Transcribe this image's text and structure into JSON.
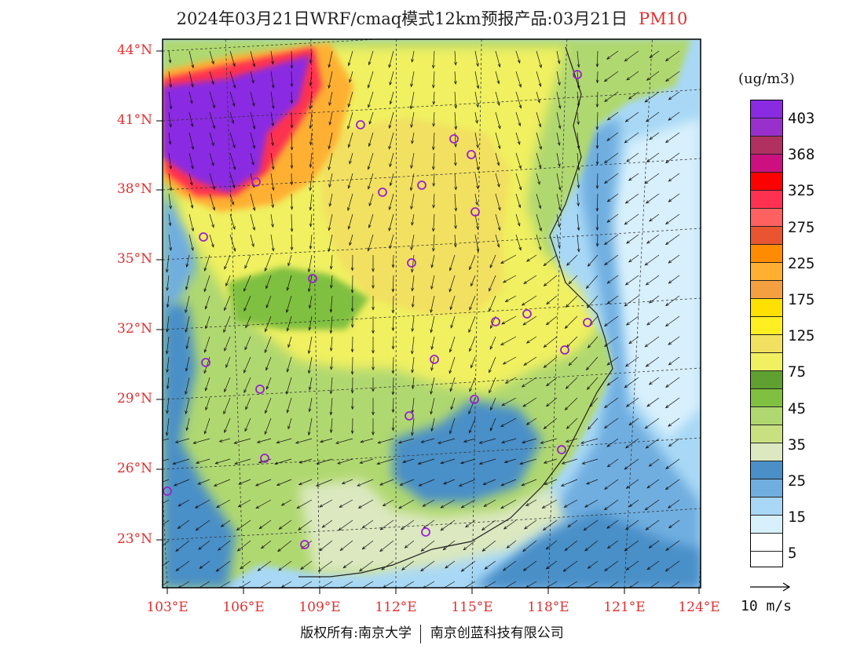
{
  "title": "2024年03月21日WRF/cmaq模式12km预报产品:03月21日",
  "product": "PM10",
  "latitude_labels": [
    "44°N",
    "41°N",
    "38°N",
    "35°N",
    "32°N",
    "29°N",
    "26°N",
    "23°N"
  ],
  "longitude_labels": [
    "103°E",
    "106°E",
    "109°E",
    "112°E",
    "115°E",
    "118°E",
    "121°E",
    "124°E"
  ],
  "legend": {
    "unit": "(ug/m3)",
    "labels": [
      "403",
      "368",
      "325",
      "275",
      "225",
      "175",
      "125",
      "75",
      "45",
      "35",
      "25",
      "15",
      "5"
    ],
    "colors": [
      "#8a2be2",
      "#9a30cc",
      "#b03060",
      "#cc1080",
      "#ff0000",
      "#ff3050",
      "#ff6060",
      "#e85530",
      "#ff8c00",
      "#ffb030",
      "#f5a040",
      "#ffe000",
      "#ffee20",
      "#f2e060",
      "#f0f060",
      "#60a030",
      "#80c040",
      "#b0d870",
      "#c8e080",
      "#dce8c0",
      "#4a8fc8",
      "#70aee0",
      "#a8d8f5",
      "#d8f0fc",
      "#ffffff"
    ]
  },
  "wind_scale": "10 m/s",
  "copyright": {
    "left": "版权所有:南京大学",
    "right": "南京创蓝科技有限公司"
  },
  "map_colors": {
    "purple": "#8a2be2",
    "red": "#ff3050",
    "orange": "#ffb030",
    "yellow_dark": "#ffe000",
    "yellow": "#f2e060",
    "yellow_light": "#f0f060",
    "green_dark": "#80c040",
    "green": "#b0d870",
    "green_light": "#c8e080",
    "pale": "#dce8c0",
    "blue_dark": "#4a8fc8",
    "blue": "#70aee0",
    "blue_light": "#a8d8f5",
    "blue_pale": "#d8f0fc"
  }
}
